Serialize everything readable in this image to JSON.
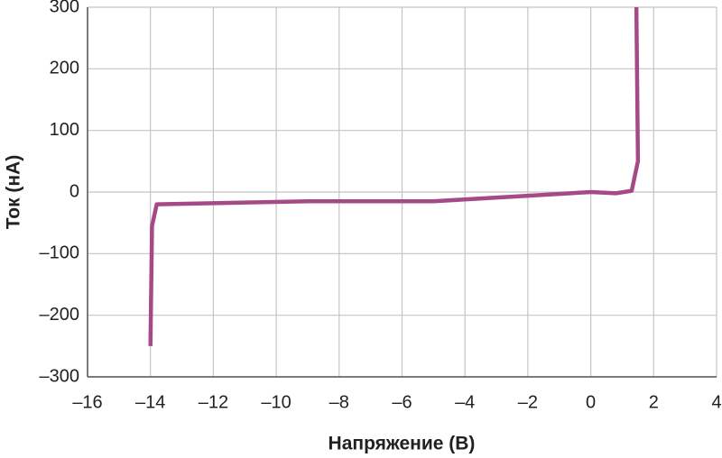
{
  "chart_data": {
    "type": "line",
    "x_label": "Напряжение (В)",
    "y_label": "Ток (нА)",
    "x": [
      -14.0,
      -13.95,
      -13.8,
      -9.0,
      -5.0,
      -2.0,
      0.0,
      0.8,
      1.3,
      1.5,
      1.45
    ],
    "series": [
      {
        "color": "#a54a87",
        "values": [
          -250,
          -55,
          -20,
          -15,
          -15,
          -6,
          0,
          -2,
          2,
          50,
          300
        ]
      }
    ],
    "xlim": [
      -16,
      4
    ],
    "xticks": [
      {
        "value": -16,
        "label": "–16"
      },
      {
        "value": -14,
        "label": "–14"
      },
      {
        "value": -12,
        "label": "–12"
      },
      {
        "value": -10,
        "label": "–10"
      },
      {
        "value": -8,
        "label": "–8"
      },
      {
        "value": -6,
        "label": "–6"
      },
      {
        "value": -4,
        "label": "–4"
      },
      {
        "value": -2,
        "label": "–2"
      },
      0,
      2,
      4
    ],
    "ylim": [
      -300,
      300
    ],
    "yticks": [
      {
        "value": -300,
        "label": "–300"
      },
      {
        "value": -200,
        "label": "–200"
      },
      {
        "value": -100,
        "label": "–100"
      },
      0,
      100,
      200,
      300
    ],
    "grid": true
  }
}
